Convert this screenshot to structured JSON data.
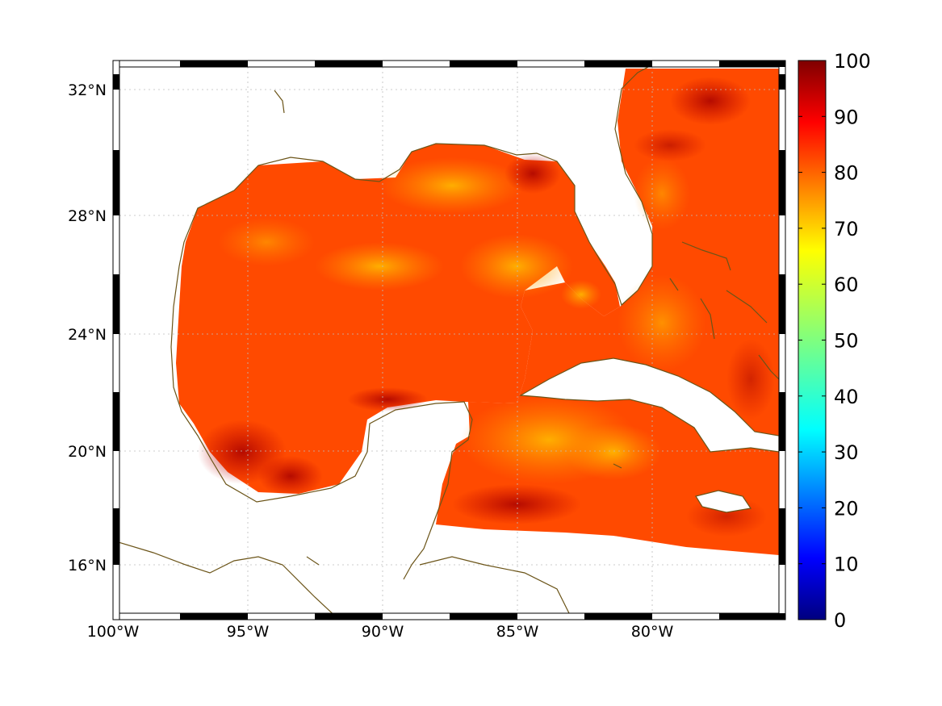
{
  "map": {
    "lon_labels": [
      "100°W",
      "95°W",
      "90°W",
      "85°W",
      "80°W"
    ],
    "lat_labels": [
      "32°N",
      "28°N",
      "24°N",
      "20°N",
      "16°N"
    ]
  },
  "colorbar": {
    "min": 0,
    "max": 100,
    "tick_labels": [
      "100",
      "90",
      "80",
      "70",
      "60",
      "50",
      "40",
      "30",
      "20",
      "10",
      "0"
    ],
    "colormap": "jet"
  },
  "colors": {
    "coastline": "#6b5418",
    "field_dominant": "#ff4a00",
    "field_high": "#b80000",
    "field_low": "#ffb800"
  }
}
